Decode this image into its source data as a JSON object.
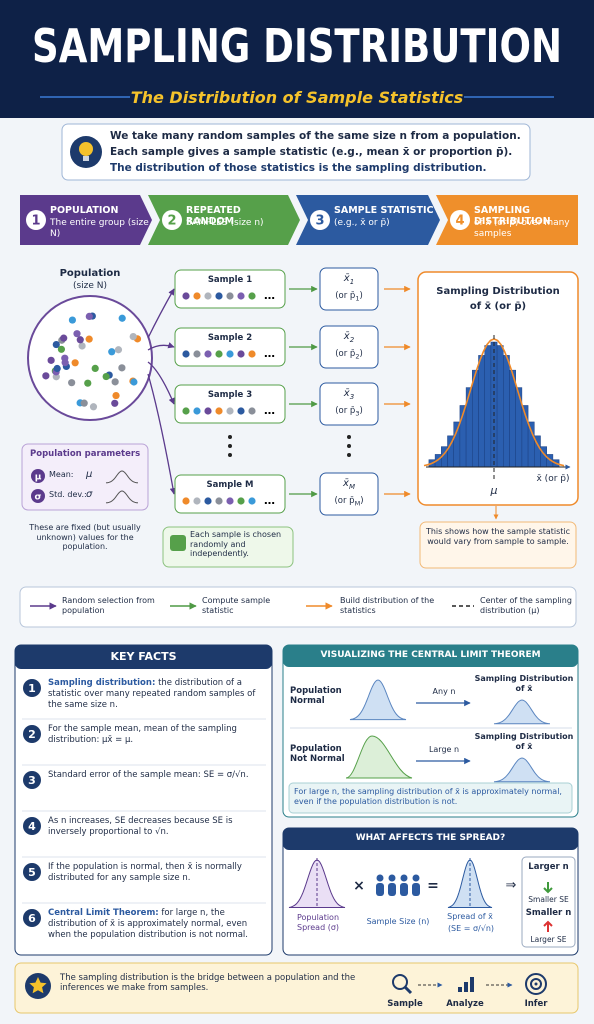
{
  "header": {
    "title": "SAMPLING DISTRIBUTION",
    "subtitle": "The Distribution of Sample Statistics"
  },
  "intro": {
    "lines": [
      "We take many random samples of the same size n from a population.",
      "Each sample gives a sample statistic (e.g., mean x̄ or proportion p̄).",
      "The distribution of those statistics is the sampling distribution."
    ]
  },
  "steps": [
    {
      "num": "1",
      "title": "POPULATION",
      "desc": "The entire group (size N)"
    },
    {
      "num": "2",
      "title": "REPEATED RANDOM",
      "desc": "SAMPLES (size n)"
    },
    {
      "num": "3",
      "title": "SAMPLE STATISTIC",
      "desc": "(e.g., x̄ or p̄)"
    },
    {
      "num": "4",
      "title": "SAMPLING DISTRIBUTION",
      "desc": "of x̄ (or p̄) over many samples"
    }
  ],
  "diagram": {
    "population": {
      "label": "Population",
      "size": "(size N)"
    },
    "parameters": {
      "title": "Population parameters",
      "rows": [
        {
          "icon": "μ",
          "label": "Mean:",
          "symbol": "μ"
        },
        {
          "icon": "σ",
          "label": "Std. dev.:",
          "symbol": "σ"
        }
      ]
    },
    "parameters_note": "These are fixed (but usually unknown) values for the population.",
    "samples": [
      "Sample 1",
      "Sample 2",
      "Sample 3",
      "Sample M"
    ],
    "stat_symbol": "x̄",
    "stat_alt": "(or p̄",
    "stat_close": ")",
    "stat_subs": [
      "1",
      "2",
      "3",
      "M"
    ],
    "sample_note": "Each sample is chosen randomly and independently.",
    "panel": {
      "title": "Sampling Distribution",
      "subtitle": "of x̄ (or p̄)",
      "center": "μ",
      "axis": "x̄ (or p̄)"
    },
    "panel_note": "This shows how the sample statistic would vary from sample to sample."
  },
  "legend": [
    "Random selection from population",
    "Compute sample statistic",
    "Build distribution of the statistics",
    "Center of the sampling distribution (μ)"
  ],
  "key_facts": {
    "title": "KEY FACTS",
    "items": [
      {
        "lead": "Sampling distribution:",
        "text": "the distribution of a statistic over many repeated random samples of the same size n."
      },
      {
        "lead": "",
        "text": "For the sample mean, mean of the sampling distribution: μx̄ = μ."
      },
      {
        "lead": "",
        "text": "Standard error of the sample mean: SE = σ/√n."
      },
      {
        "lead": "",
        "text": "As n increases, SE decreases because SE is inversely proportional to √n."
      },
      {
        "lead": "",
        "text": "If the population is normal, then x̄ is normally distributed for any sample size n."
      },
      {
        "lead": "Central Limit Theorem:",
        "text": "for large n, the distribution of x̄ is approximately normal, even when the population distribution is not normal."
      }
    ]
  },
  "clt": {
    "title": "VISUALIZING THE CENTRAL LIMIT THEOREM",
    "rows": [
      {
        "label": "Population Normal",
        "arrow": "Any n",
        "result": "Sampling Distribution of x̄"
      },
      {
        "label": "Population Not Normal",
        "arrow": "Large n",
        "result": "Sampling Distribution of x̄"
      }
    ],
    "note": "For large n, the sampling distribution of x̄ is approximately normal, even if the population distribution is not."
  },
  "spread": {
    "title": "WHAT AFFECTS THE SPREAD?",
    "population": "Population Spread (σ)",
    "times": "×",
    "sample_size": "Sample Size (n)",
    "equals": "=",
    "result": "Spread of x̄",
    "formula": "(SE = σ/√n)",
    "implies": "⇒",
    "box": [
      "Larger n",
      "Smaller SE",
      "Smaller n",
      "Larger SE"
    ]
  },
  "footer": {
    "text": "The sampling distribution is the bridge between a population and the inferences we make from samples.",
    "steps": [
      "Sample",
      "Analyze",
      "Infer"
    ]
  }
}
